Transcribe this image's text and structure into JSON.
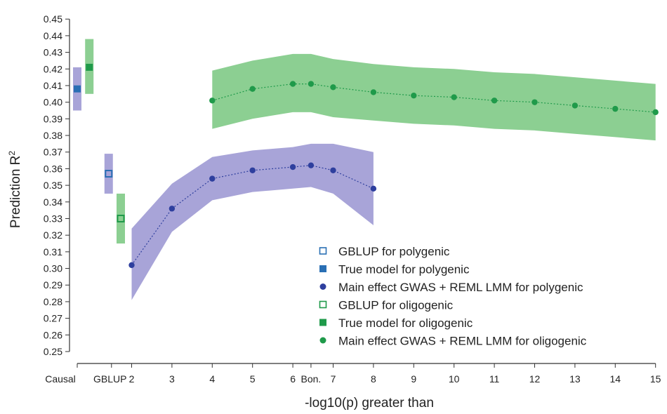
{
  "chart_data": {
    "type": "line",
    "ylabel": "Prediction R",
    "ylabel_sup": "2",
    "xlabel": "-log10(p) greater than",
    "ylim": [
      0.25,
      0.45
    ],
    "y_ticks": [
      "0.25",
      "0.26",
      "0.27",
      "0.28",
      "0.29",
      "0.30",
      "0.31",
      "0.32",
      "0.33",
      "0.34",
      "0.35",
      "0.36",
      "0.37",
      "0.38",
      "0.39",
      "0.40",
      "0.41",
      "0.42",
      "0.43",
      "0.44",
      "0.45"
    ],
    "x_ticks": [
      {
        "label": "Causal",
        "x": 0
      },
      {
        "label": "GBLUP",
        "x": 0.85
      },
      {
        "label": "2",
        "x": 1.35
      },
      {
        "label": "3",
        "x": 2.35
      },
      {
        "label": "4",
        "x": 3.35
      },
      {
        "label": "5",
        "x": 4.35
      },
      {
        "label": "6",
        "x": 5.35
      },
      {
        "label": "Bon.",
        "x": 5.8
      },
      {
        "label": "7",
        "x": 6.35
      },
      {
        "label": "8",
        "x": 7.35
      },
      {
        "label": "9",
        "x": 8.35
      },
      {
        "label": "10",
        "x": 9.35
      },
      {
        "label": "11",
        "x": 10.35
      },
      {
        "label": "12",
        "x": 11.35
      },
      {
        "label": "13",
        "x": 12.35
      },
      {
        "label": "14",
        "x": 13.35
      },
      {
        "label": "15",
        "x": 14.35
      }
    ],
    "grid": false,
    "legend_position": "bottom-right",
    "colors": {
      "poly_marker": "#2a6fb4",
      "poly_fill": "#a8a4d8",
      "poly_point": "#2e3f9e",
      "oligo_marker": "#1f9a4a",
      "oligo_fill": "#8ccf92",
      "oligo_point": "#1f9a4a"
    },
    "single_points": [
      {
        "name": "True model for polygenic",
        "x": 0,
        "y": 0.408,
        "low": 0.395,
        "high": 0.421,
        "marker": "filled-square",
        "group": "poly"
      },
      {
        "name": "True model for oligogenic",
        "x": 0.3,
        "y": 0.421,
        "low": 0.405,
        "high": 0.438,
        "marker": "filled-square",
        "group": "oligo"
      },
      {
        "name": "GBLUP for polygenic",
        "x": 0.78,
        "y": 0.357,
        "low": 0.345,
        "high": 0.369,
        "marker": "open-square",
        "group": "poly"
      },
      {
        "name": "GBLUP for oligogenic",
        "x": 1.08,
        "y": 0.33,
        "low": 0.315,
        "high": 0.345,
        "marker": "open-square",
        "group": "oligo"
      }
    ],
    "series": [
      {
        "name": "Main effect GWAS + REML LMM for polygenic",
        "group": "poly",
        "x": [
          1.35,
          2.35,
          3.35,
          4.35,
          5.35,
          5.8,
          6.35,
          7.35
        ],
        "y": [
          0.302,
          0.336,
          0.354,
          0.359,
          0.361,
          0.362,
          0.359,
          0.348
        ],
        "low": [
          0.281,
          0.322,
          0.341,
          0.346,
          0.348,
          0.349,
          0.345,
          0.326
        ],
        "high": [
          0.324,
          0.351,
          0.367,
          0.371,
          0.373,
          0.375,
          0.375,
          0.37
        ]
      },
      {
        "name": "Main effect GWAS + REML LMM for oligogenic",
        "group": "oligo",
        "x": [
          3.35,
          4.35,
          5.35,
          5.8,
          6.35,
          7.35,
          8.35,
          9.35,
          10.35,
          11.35,
          12.35,
          13.35,
          14.35
        ],
        "y": [
          0.401,
          0.408,
          0.411,
          0.411,
          0.409,
          0.406,
          0.404,
          0.403,
          0.401,
          0.4,
          0.398,
          0.396,
          0.394
        ],
        "low": [
          0.384,
          0.39,
          0.394,
          0.394,
          0.391,
          0.389,
          0.387,
          0.386,
          0.384,
          0.383,
          0.381,
          0.379,
          0.377
        ],
        "high": [
          0.419,
          0.425,
          0.429,
          0.429,
          0.426,
          0.423,
          0.421,
          0.42,
          0.418,
          0.417,
          0.415,
          0.413,
          0.411
        ]
      }
    ],
    "legend": [
      {
        "label": "GBLUP for polygenic",
        "marker": "open-square",
        "group": "poly"
      },
      {
        "label": "True model for polygenic",
        "marker": "filled-square",
        "group": "poly"
      },
      {
        "label": "Main effect GWAS + REML LMM for polygenic",
        "marker": "dot",
        "group": "poly"
      },
      {
        "label": "GBLUP for oligogenic",
        "marker": "open-square",
        "group": "oligo"
      },
      {
        "label": "True model for oligogenic",
        "marker": "filled-square",
        "group": "oligo"
      },
      {
        "label": "Main effect GWAS + REML LMM for oligogenic",
        "marker": "dot",
        "group": "oligo"
      }
    ]
  }
}
